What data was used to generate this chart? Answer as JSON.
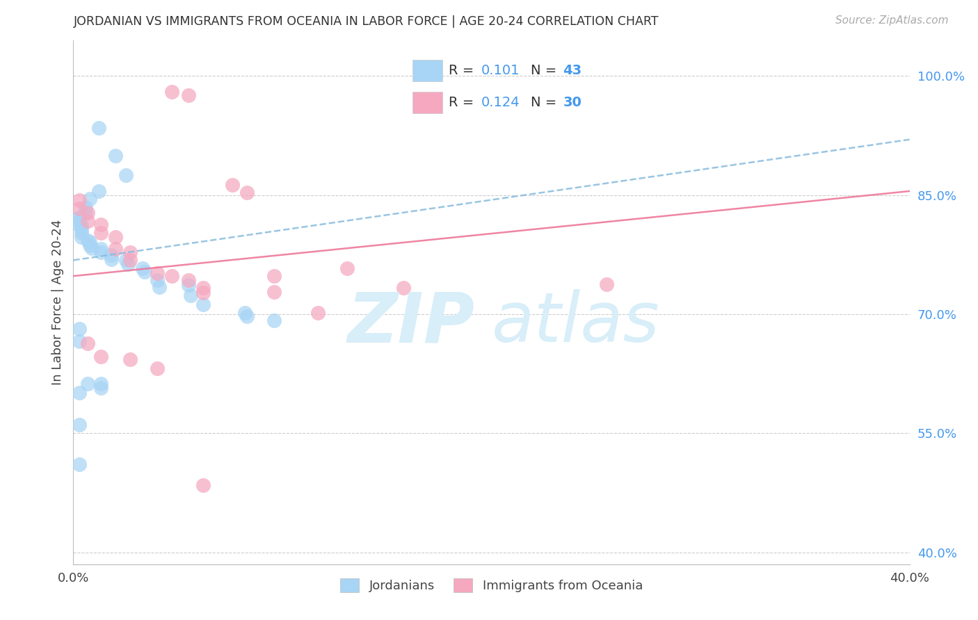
{
  "title": "JORDANIAN VS IMMIGRANTS FROM OCEANIA IN LABOR FORCE | AGE 20-24 CORRELATION CHART",
  "source": "Source: ZipAtlas.com",
  "ylabel": "In Labor Force | Age 20-24",
  "legend1_label": "Jordanians",
  "legend2_label": "Immigrants from Oceania",
  "r1": 0.101,
  "n1": 43,
  "r2": 0.124,
  "n2": 30,
  "xlim": [
    0.0,
    0.4
  ],
  "ylim": [
    0.385,
    1.045
  ],
  "yticks_right": [
    1.0,
    0.85,
    0.7,
    0.55,
    0.4
  ],
  "ytick_labels_right": [
    "100.0%",
    "85.0%",
    "70.0%",
    "55.0%",
    "40.0%"
  ],
  "color_blue": "#A8D4F5",
  "color_pink": "#F5A8C0",
  "color_blue_line": "#88BBDD",
  "color_pink_line": "#EE7799",
  "color_text_blue": "#4499EE",
  "background_color": "#ffffff",
  "blue_x": [
    0.012,
    0.02,
    0.025,
    0.012,
    0.008,
    0.006,
    0.006,
    0.003,
    0.003,
    0.003,
    0.003,
    0.004,
    0.004,
    0.004,
    0.004,
    0.007,
    0.008,
    0.008,
    0.009,
    0.013,
    0.013,
    0.018,
    0.018,
    0.025,
    0.026,
    0.033,
    0.034,
    0.04,
    0.041,
    0.055,
    0.056,
    0.062,
    0.082,
    0.083,
    0.096,
    0.003,
    0.003,
    0.007,
    0.013,
    0.013,
    0.003,
    0.003,
    0.003
  ],
  "blue_y": [
    0.935,
    0.9,
    0.875,
    0.855,
    0.845,
    0.835,
    0.828,
    0.822,
    0.822,
    0.817,
    0.812,
    0.811,
    0.807,
    0.802,
    0.797,
    0.793,
    0.791,
    0.787,
    0.783,
    0.782,
    0.778,
    0.774,
    0.769,
    0.768,
    0.763,
    0.758,
    0.753,
    0.743,
    0.734,
    0.737,
    0.724,
    0.712,
    0.702,
    0.697,
    0.692,
    0.682,
    0.666,
    0.612,
    0.612,
    0.607,
    0.601,
    0.561,
    0.511
  ],
  "pink_x": [
    0.047,
    0.055,
    0.003,
    0.003,
    0.007,
    0.007,
    0.013,
    0.013,
    0.02,
    0.02,
    0.027,
    0.027,
    0.04,
    0.047,
    0.055,
    0.062,
    0.062,
    0.076,
    0.083,
    0.096,
    0.096,
    0.117,
    0.131,
    0.158,
    0.255,
    0.007,
    0.013,
    0.027,
    0.04,
    0.062
  ],
  "pink_y": [
    0.98,
    0.976,
    0.844,
    0.833,
    0.828,
    0.817,
    0.813,
    0.802,
    0.797,
    0.782,
    0.778,
    0.768,
    0.752,
    0.748,
    0.743,
    0.733,
    0.727,
    0.863,
    0.853,
    0.748,
    0.728,
    0.702,
    0.758,
    0.733,
    0.738,
    0.663,
    0.647,
    0.643,
    0.632,
    0.485
  ],
  "blue_trend_x": [
    0.0,
    0.4
  ],
  "blue_trend_y": [
    0.768,
    0.92
  ],
  "pink_trend_x": [
    0.0,
    0.4
  ],
  "pink_trend_y": [
    0.748,
    0.855
  ]
}
